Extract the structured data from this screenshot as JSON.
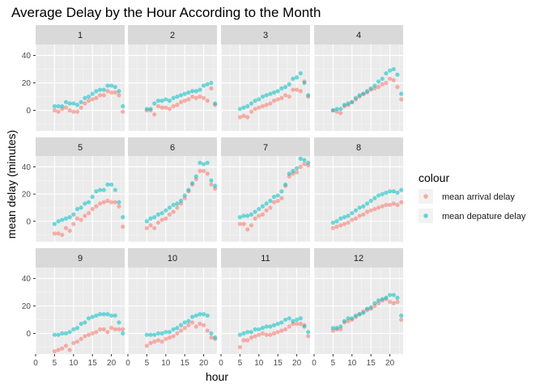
{
  "chart_data": {
    "type": "scatter",
    "title": "Average Delay by the Hour According to the Month",
    "xlabel": "hour",
    "ylabel": "mean delay (minutes)",
    "x_ticks": [
      0,
      5,
      10,
      15,
      20
    ],
    "y_ticks": [
      0,
      20,
      40
    ],
    "xlim": [
      0,
      23.5
    ],
    "ylim": [
      -15,
      48
    ],
    "grid": true,
    "legend": {
      "title": "colour",
      "position": "right",
      "entries": [
        {
          "label": "mean arrival delay",
          "color": "#F8766D"
        },
        {
          "label": "mean depature delay",
          "color": "#00BFC4"
        }
      ]
    },
    "x": [
      5,
      6,
      7,
      8,
      9,
      10,
      11,
      12,
      13,
      14,
      15,
      16,
      17,
      18,
      19,
      20,
      21,
      22,
      23
    ],
    "panels": [
      {
        "label": "1",
        "arrival": [
          0,
          -1,
          1,
          2,
          0,
          -1,
          -1,
          2,
          5,
          7,
          8,
          9,
          11,
          11,
          14,
          13,
          13,
          11,
          -1
        ],
        "departure": [
          3,
          3,
          3,
          6,
          5,
          5,
          4,
          6,
          9,
          10,
          12,
          14,
          15,
          15,
          18,
          18,
          17,
          14,
          3
        ]
      },
      {
        "label": "2",
        "arrival": [
          0,
          0,
          -3,
          3,
          2,
          2,
          1,
          3,
          4,
          6,
          7,
          8,
          10,
          9,
          10,
          9,
          7,
          16,
          4
        ],
        "departure": [
          1,
          1,
          5,
          7,
          7,
          8,
          7,
          9,
          10,
          11,
          12,
          13,
          14,
          14,
          15,
          18,
          19,
          20,
          5
        ]
      },
      {
        "label": "3",
        "arrival": [
          -5,
          -4,
          -5,
          -1,
          1,
          2,
          3,
          4,
          5,
          7,
          8,
          9,
          11,
          10,
          15,
          15,
          14,
          21,
          10
        ],
        "departure": [
          1,
          2,
          3,
          5,
          7,
          8,
          10,
          11,
          12,
          13,
          14,
          16,
          17,
          19,
          23,
          24,
          27,
          20,
          11
        ]
      },
      {
        "label": "4",
        "arrival": [
          0,
          -1,
          -2,
          3,
          4,
          6,
          8,
          10,
          12,
          13,
          15,
          16,
          17,
          19,
          20,
          23,
          22,
          17,
          8
        ],
        "departure": [
          0,
          1,
          1,
          4,
          5,
          6,
          9,
          11,
          12,
          14,
          16,
          18,
          21,
          23,
          27,
          29,
          30,
          26,
          12
        ]
      },
      {
        "label": "5",
        "arrival": [
          -9,
          -9,
          -10,
          -5,
          -7,
          -2,
          2,
          1,
          4,
          6,
          9,
          11,
          13,
          14,
          15,
          14,
          14,
          11,
          -4
        ],
        "departure": [
          -2,
          0,
          1,
          2,
          3,
          5,
          9,
          10,
          13,
          14,
          18,
          22,
          23,
          23,
          27,
          27,
          23,
          14,
          3
        ]
      },
      {
        "label": "6",
        "arrival": [
          -5,
          -3,
          -5,
          -1,
          1,
          2,
          5,
          7,
          10,
          13,
          17,
          22,
          27,
          31,
          37,
          37,
          35,
          27,
          24
        ],
        "departure": [
          0,
          2,
          3,
          5,
          6,
          8,
          10,
          12,
          13,
          15,
          19,
          23,
          28,
          33,
          43,
          42,
          43,
          30,
          26
        ]
      },
      {
        "label": "7",
        "arrival": [
          -2,
          -2,
          -6,
          -3,
          2,
          4,
          5,
          8,
          10,
          14,
          15,
          17,
          26,
          33,
          35,
          36,
          40,
          42,
          41
        ],
        "departure": [
          3,
          4,
          4,
          5,
          7,
          9,
          11,
          13,
          15,
          18,
          19,
          22,
          27,
          35,
          37,
          39,
          46,
          45,
          43
        ]
      },
      {
        "label": "8",
        "arrival": [
          -5,
          -4,
          -3,
          -2,
          -1,
          1,
          2,
          4,
          5,
          7,
          8,
          9,
          10,
          11,
          12,
          12,
          13,
          12,
          14
        ],
        "departure": [
          -1,
          0,
          2,
          3,
          4,
          6,
          8,
          10,
          11,
          13,
          15,
          17,
          19,
          20,
          21,
          22,
          22,
          21,
          23
        ]
      },
      {
        "label": "9",
        "arrival": [
          -13,
          -12,
          -11,
          -9,
          -12,
          -7,
          -6,
          -4,
          -2,
          -1,
          0,
          1,
          3,
          3,
          1,
          4,
          3,
          3,
          3
        ],
        "departure": [
          -1,
          -1,
          0,
          0,
          1,
          3,
          4,
          7,
          8,
          11,
          12,
          13,
          14,
          14,
          14,
          13,
          13,
          8,
          0
        ]
      },
      {
        "label": "10",
        "arrival": [
          -9,
          -7,
          -6,
          -5,
          -6,
          -4,
          -3,
          -2,
          0,
          2,
          4,
          6,
          8,
          5,
          7,
          6,
          2,
          -3,
          -4
        ],
        "departure": [
          -1,
          -1,
          -1,
          0,
          0,
          1,
          1,
          3,
          4,
          6,
          8,
          9,
          12,
          13,
          14,
          14,
          13,
          0,
          -3
        ]
      },
      {
        "label": "11",
        "arrival": [
          -10,
          -5,
          -5,
          -3,
          -2,
          -1,
          0,
          -1,
          -1,
          0,
          1,
          2,
          3,
          5,
          7,
          7,
          7,
          6,
          -2
        ],
        "departure": [
          -1,
          0,
          1,
          1,
          3,
          3,
          4,
          5,
          5,
          6,
          7,
          8,
          10,
          11,
          9,
          10,
          11,
          5,
          1
        ]
      },
      {
        "label": "12",
        "arrival": [
          2,
          3,
          3,
          8,
          9,
          10,
          12,
          14,
          16,
          17,
          18,
          20,
          22,
          24,
          25,
          23,
          22,
          23,
          10
        ],
        "departure": [
          4,
          4,
          5,
          9,
          11,
          11,
          13,
          14,
          15,
          18,
          19,
          22,
          24,
          25,
          26,
          28,
          28,
          26,
          13
        ]
      }
    ]
  }
}
